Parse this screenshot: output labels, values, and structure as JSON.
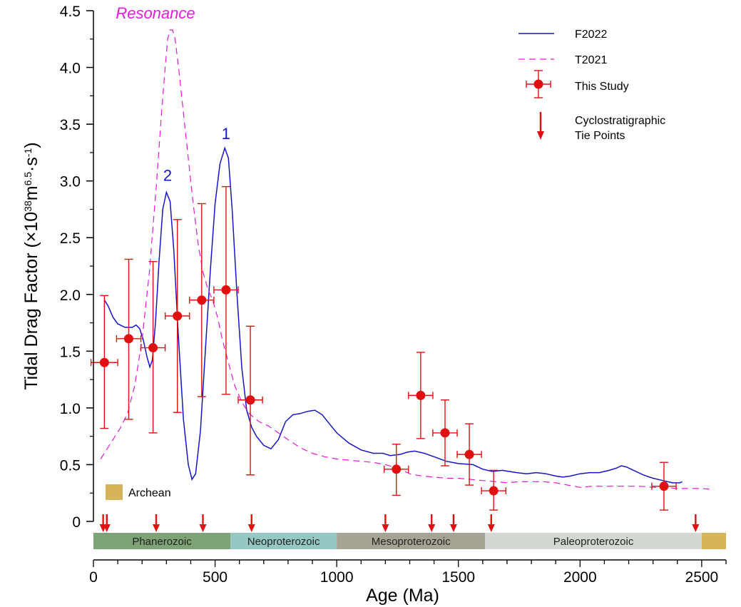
{
  "chart_data": {
    "type": "line",
    "xlabel": "Age (Ma)",
    "ylabel_parts": [
      "Tidal Drag Factor (×10",
      "38",
      "m",
      "6.5",
      "·s",
      "-1",
      ")"
    ],
    "xlim": [
      0,
      2600
    ],
    "ylim": [
      0,
      4.5
    ],
    "x_ticks": [
      0,
      500,
      1000,
      1500,
      2000,
      2500
    ],
    "y_ticks": [
      {
        "value": 0,
        "label": "0"
      },
      {
        "value": 0.5,
        "label": "0.5"
      },
      {
        "value": 1.0,
        "label": "1.0"
      },
      {
        "value": 1.5,
        "label": "1.5"
      },
      {
        "value": 2.0,
        "label": "2.0"
      },
      {
        "value": 2.5,
        "label": "2.5"
      },
      {
        "value": 3.0,
        "label": "3.0"
      },
      {
        "value": 3.5,
        "label": "3.5"
      },
      {
        "value": 4.0,
        "label": "4.0"
      },
      {
        "value": 4.5,
        "label": "4.5"
      }
    ],
    "colors": {
      "f2022": "#1515c8",
      "t2021": "#e818e0",
      "study": "#e01010",
      "axis": "#000000"
    },
    "legend": {
      "placement": "top-right",
      "entries": [
        {
          "key": "f2022",
          "label": "F2022"
        },
        {
          "key": "t2021",
          "label": "T2021"
        },
        {
          "key": "study",
          "label": "This Study"
        },
        {
          "key": "tie",
          "label_lines": [
            "Cyclostratigraphic",
            "Tie Points"
          ]
        }
      ]
    },
    "series": [
      {
        "name": "F2022",
        "style": "solid",
        "points": [
          [
            45,
            1.95
          ],
          [
            60,
            1.9
          ],
          [
            80,
            1.8
          ],
          [
            100,
            1.74
          ],
          [
            130,
            1.71
          ],
          [
            160,
            1.71
          ],
          [
            175,
            1.73
          ],
          [
            190,
            1.7
          ],
          [
            205,
            1.6
          ],
          [
            220,
            1.45
          ],
          [
            232,
            1.36
          ],
          [
            242,
            1.42
          ],
          [
            255,
            1.75
          ],
          [
            270,
            2.3
          ],
          [
            285,
            2.75
          ],
          [
            300,
            2.9
          ],
          [
            315,
            2.82
          ],
          [
            330,
            2.4
          ],
          [
            350,
            1.6
          ],
          [
            370,
            0.9
          ],
          [
            390,
            0.5
          ],
          [
            405,
            0.37
          ],
          [
            420,
            0.42
          ],
          [
            440,
            0.8
          ],
          [
            460,
            1.5
          ],
          [
            480,
            2.2
          ],
          [
            500,
            2.8
          ],
          [
            520,
            3.15
          ],
          [
            540,
            3.29
          ],
          [
            555,
            3.2
          ],
          [
            570,
            2.75
          ],
          [
            590,
            2.0
          ],
          [
            610,
            1.35
          ],
          [
            630,
            0.98
          ],
          [
            650,
            0.83
          ],
          [
            670,
            0.75
          ],
          [
            700,
            0.67
          ],
          [
            730,
            0.64
          ],
          [
            760,
            0.72
          ],
          [
            790,
            0.88
          ],
          [
            820,
            0.94
          ],
          [
            850,
            0.95
          ],
          [
            880,
            0.97
          ],
          [
            910,
            0.98
          ],
          [
            940,
            0.94
          ],
          [
            970,
            0.86
          ],
          [
            1000,
            0.78
          ],
          [
            1050,
            0.69
          ],
          [
            1100,
            0.63
          ],
          [
            1150,
            0.6
          ],
          [
            1190,
            0.6
          ],
          [
            1220,
            0.58
          ],
          [
            1260,
            0.59
          ],
          [
            1290,
            0.61
          ],
          [
            1320,
            0.62
          ],
          [
            1360,
            0.6
          ],
          [
            1400,
            0.57
          ],
          [
            1450,
            0.53
          ],
          [
            1500,
            0.51
          ],
          [
            1560,
            0.5
          ],
          [
            1600,
            0.46
          ],
          [
            1640,
            0.44
          ],
          [
            1680,
            0.45
          ],
          [
            1710,
            0.44
          ],
          [
            1740,
            0.43
          ],
          [
            1780,
            0.42
          ],
          [
            1820,
            0.43
          ],
          [
            1860,
            0.42
          ],
          [
            1900,
            0.4
          ],
          [
            1930,
            0.39
          ],
          [
            1960,
            0.4
          ],
          [
            2000,
            0.42
          ],
          [
            2040,
            0.43
          ],
          [
            2080,
            0.43
          ],
          [
            2120,
            0.45
          ],
          [
            2150,
            0.47
          ],
          [
            2170,
            0.49
          ],
          [
            2190,
            0.48
          ],
          [
            2220,
            0.45
          ],
          [
            2260,
            0.41
          ],
          [
            2300,
            0.38
          ],
          [
            2340,
            0.36
          ],
          [
            2380,
            0.34
          ],
          [
            2410,
            0.34
          ],
          [
            2420,
            0.35
          ]
        ]
      },
      {
        "name": "T2021",
        "style": "dashed",
        "points": [
          [
            30,
            0.55
          ],
          [
            50,
            0.62
          ],
          [
            80,
            0.72
          ],
          [
            110,
            0.82
          ],
          [
            140,
            0.95
          ],
          [
            170,
            1.2
          ],
          [
            200,
            1.6
          ],
          [
            230,
            2.2
          ],
          [
            260,
            3.0
          ],
          [
            280,
            3.6
          ],
          [
            295,
            4.0
          ],
          [
            305,
            4.25
          ],
          [
            315,
            4.33
          ],
          [
            325,
            4.33
          ],
          [
            335,
            4.26
          ],
          [
            350,
            4.0
          ],
          [
            370,
            3.6
          ],
          [
            390,
            3.2
          ],
          [
            410,
            2.8
          ],
          [
            430,
            2.45
          ],
          [
            450,
            2.2
          ],
          [
            470,
            2.05
          ],
          [
            490,
            1.95
          ],
          [
            510,
            1.8
          ],
          [
            530,
            1.6
          ],
          [
            555,
            1.4
          ],
          [
            580,
            1.2
          ],
          [
            610,
            1.05
          ],
          [
            640,
            0.95
          ],
          [
            680,
            0.88
          ],
          [
            720,
            0.84
          ],
          [
            760,
            0.78
          ],
          [
            800,
            0.72
          ],
          [
            850,
            0.65
          ],
          [
            900,
            0.6
          ],
          [
            950,
            0.57
          ],
          [
            1000,
            0.55
          ],
          [
            1050,
            0.54
          ],
          [
            1100,
            0.53
          ],
          [
            1150,
            0.52
          ],
          [
            1200,
            0.5
          ],
          [
            1250,
            0.47
          ],
          [
            1300,
            0.42
          ],
          [
            1350,
            0.4
          ],
          [
            1400,
            0.39
          ],
          [
            1450,
            0.38
          ],
          [
            1500,
            0.38
          ],
          [
            1550,
            0.37
          ],
          [
            1600,
            0.36
          ],
          [
            1650,
            0.35
          ],
          [
            1700,
            0.34
          ],
          [
            1750,
            0.35
          ],
          [
            1800,
            0.35
          ],
          [
            1850,
            0.35
          ],
          [
            1900,
            0.34
          ],
          [
            1950,
            0.32
          ],
          [
            2000,
            0.3
          ],
          [
            2050,
            0.31
          ],
          [
            2100,
            0.31
          ],
          [
            2150,
            0.31
          ],
          [
            2200,
            0.31
          ],
          [
            2250,
            0.31
          ],
          [
            2300,
            0.3
          ],
          [
            2350,
            0.3
          ],
          [
            2400,
            0.29
          ],
          [
            2450,
            0.29
          ],
          [
            2500,
            0.29
          ],
          [
            2550,
            0.28
          ]
        ]
      }
    ],
    "study_points": [
      {
        "x": 45,
        "y": 1.4,
        "xerr": 55,
        "ylo": 0.82,
        "yhi": 1.99
      },
      {
        "x": 145,
        "y": 1.61,
        "xerr": 50,
        "ylo": 0.9,
        "yhi": 2.31
      },
      {
        "x": 245,
        "y": 1.53,
        "xerr": 50,
        "ylo": 0.78,
        "yhi": 2.29
      },
      {
        "x": 345,
        "y": 1.81,
        "xerr": 50,
        "ylo": 0.96,
        "yhi": 2.66
      },
      {
        "x": 445,
        "y": 1.95,
        "xerr": 50,
        "ylo": 1.1,
        "yhi": 2.8
      },
      {
        "x": 545,
        "y": 2.04,
        "xerr": 50,
        "ylo": 1.12,
        "yhi": 2.95
      },
      {
        "x": 645,
        "y": 1.07,
        "xerr": 50,
        "ylo": 0.41,
        "yhi": 1.72
      },
      {
        "x": 1245,
        "y": 0.46,
        "xerr": 50,
        "ylo": 0.23,
        "yhi": 0.68
      },
      {
        "x": 1345,
        "y": 1.11,
        "xerr": 50,
        "ylo": 0.73,
        "yhi": 1.49
      },
      {
        "x": 1445,
        "y": 0.78,
        "xerr": 50,
        "ylo": 0.49,
        "yhi": 1.07
      },
      {
        "x": 1545,
        "y": 0.59,
        "xerr": 50,
        "ylo": 0.32,
        "yhi": 0.86
      },
      {
        "x": 1645,
        "y": 0.27,
        "xerr": 50,
        "ylo": 0.1,
        "yhi": 0.45
      },
      {
        "x": 2345,
        "y": 0.31,
        "xerr": 50,
        "ylo": 0.1,
        "yhi": 0.52
      }
    ],
    "tie_points": [
      40,
      55,
      258,
      450,
      650,
      1200,
      1390,
      1480,
      1635,
      2475
    ],
    "annotations": [
      {
        "text": "Resonance",
        "x": 255,
        "y": 4.43,
        "color": "#e818e0"
      },
      {
        "text": "1",
        "x": 545,
        "y": 3.37,
        "color": "#1515c8"
      },
      {
        "text": "2",
        "x": 305,
        "y": 3.0,
        "color": "#1515c8"
      }
    ],
    "archean_legend": {
      "label": "Archean",
      "color": "#d7b45a"
    },
    "eras": [
      {
        "name": "Phanerozoic",
        "start": 0,
        "end": 563,
        "color": "#7ea376"
      },
      {
        "name": "Neoproterozoic",
        "start": 563,
        "end": 1000,
        "color": "#95c8c3"
      },
      {
        "name": "Mesoproterozoic",
        "start": 1000,
        "end": 1610,
        "color": "#a6a494"
      },
      {
        "name": "Paleoproterozoic",
        "start": 1610,
        "end": 2500,
        "color": "#d3d9d2"
      },
      {
        "name": "",
        "start": 2500,
        "end": 2600,
        "color": "#d7b45a"
      }
    ]
  }
}
